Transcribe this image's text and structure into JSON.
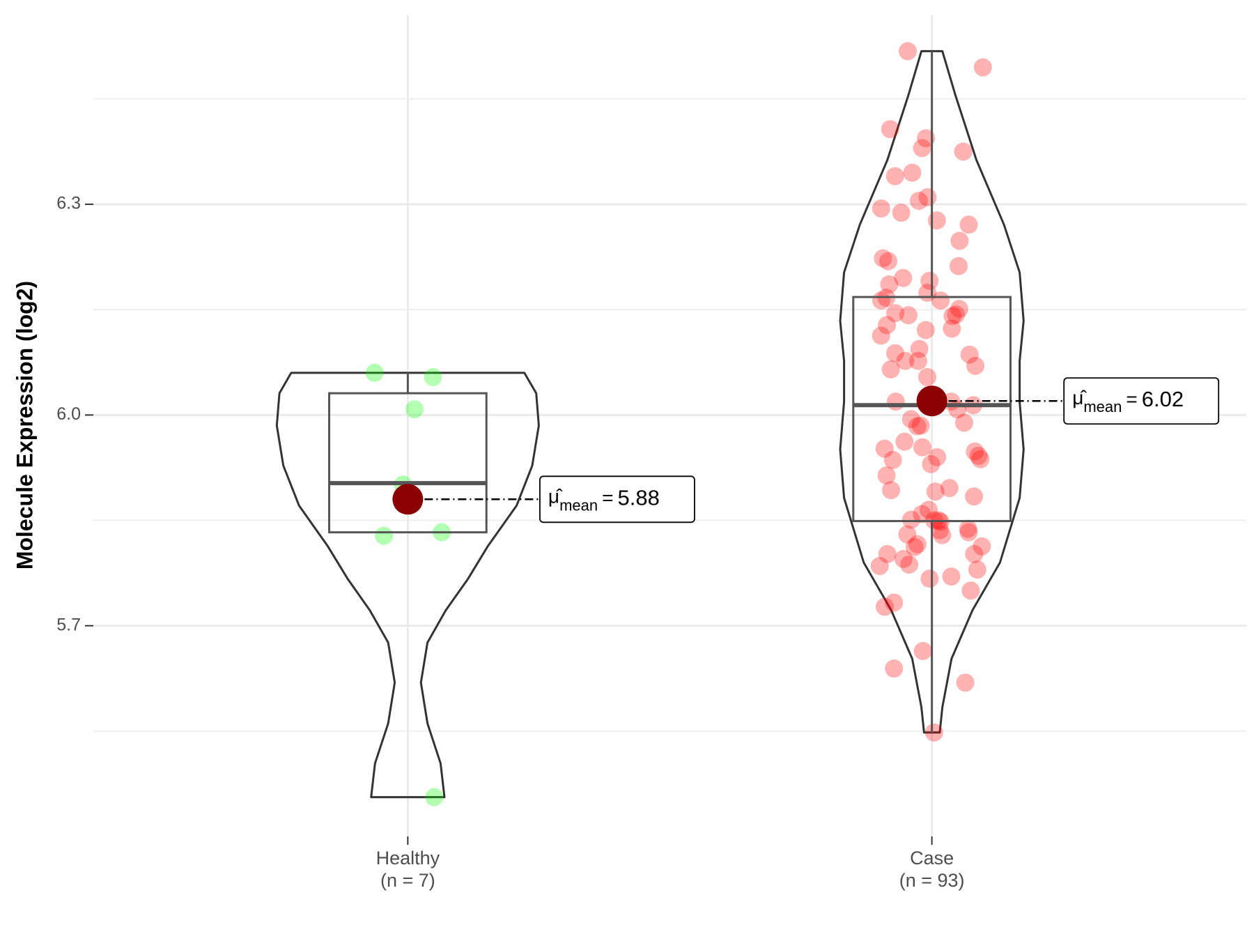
{
  "chart_data": {
    "type": "violin",
    "y_label": "Molecule Expression (log2)",
    "categories": [
      "Healthy",
      "Case"
    ],
    "category_sublabels": [
      "(n = 7)",
      "(n = 93)"
    ],
    "ylim": [
      5.4,
      6.57
    ],
    "yticks": [
      {
        "value": 5.7,
        "label": "5.7"
      },
      {
        "value": 6,
        "label": "6.0"
      },
      {
        "value": 6.3,
        "label": "6.3"
      }
    ],
    "minor_yticks": [
      5.55,
      5.85,
      6.15,
      6.45
    ],
    "grid": true,
    "mean_symbol": "μ̂",
    "mean_subscript": "mean",
    "mean_operator": "=",
    "groups": [
      {
        "color": "#00ff00",
        "mean_color": "#8b0000",
        "values": [
          6.06,
          6.054,
          6.008,
          5.901,
          5.828,
          5.833,
          5.456
        ],
        "q1": 5.833,
        "median": 5.903,
        "q3": 6.031,
        "whisker_low": 5.833,
        "whisker_high": 6.06,
        "mean": 5.88,
        "violin_y": [
          6.06,
          6.031,
          5.985,
          5.928,
          5.871,
          5.813,
          5.767,
          5.722,
          5.676,
          5.619,
          5.561,
          5.504,
          5.456
        ],
        "violin_density": [
          0.89,
          0.98,
          1,
          0.95,
          0.83,
          0.61,
          0.46,
          0.29,
          0.15,
          0.1,
          0.15,
          0.25,
          0.28
        ]
      },
      {
        "color": "#ff0000",
        "mean_color": "#8b0000",
        "values": [
          6.518,
          6.495,
          6.407,
          6.394,
          6.375,
          6.38,
          6.345,
          6.34,
          6.305,
          6.31,
          6.294,
          6.288,
          6.277,
          6.271,
          6.248,
          6.223,
          6.219,
          6.212,
          6.191,
          6.195,
          6.186,
          6.167,
          6.163,
          6.163,
          6.145,
          6.151,
          6.141,
          6.142,
          6.128,
          6.123,
          6.121,
          6.113,
          6.088,
          6.094,
          6.086,
          6.077,
          6.077,
          6.065,
          6.07,
          6.054,
          6.019,
          6.014,
          6.019,
          5.994,
          5.989,
          6.008,
          5.984,
          5.985,
          5.962,
          5.952,
          5.94,
          5.937,
          5.936,
          5.93,
          5.942,
          5.954,
          5.914,
          5.893,
          5.884,
          5.896,
          5.865,
          5.851,
          5.848,
          5.85,
          5.838,
          5.833,
          5.83,
          5.829,
          5.813,
          5.816,
          5.812,
          5.802,
          5.795,
          5.787,
          5.78,
          5.767,
          5.77,
          5.75,
          5.733,
          5.727,
          5.664,
          5.639,
          5.619,
          5.548,
          5.85,
          5.836,
          6.174,
          6.143,
          5.948,
          5.859,
          5.785,
          5.802,
          5.891
        ],
        "q1": 5.849,
        "median": 6.014,
        "q3": 6.168,
        "whisker_low": 5.548,
        "whisker_high": 6.518,
        "mean": 6.02,
        "violin_y": [
          6.518,
          6.455,
          6.363,
          6.271,
          6.203,
          6.134,
          6.077,
          6.019,
          5.951,
          5.882,
          5.79,
          5.722,
          5.653,
          5.584,
          5.548
        ],
        "violin_density": [
          0.08,
          0.18,
          0.34,
          0.55,
          0.67,
          0.7,
          0.67,
          0.67,
          0.7,
          0.67,
          0.52,
          0.31,
          0.15,
          0.08,
          0.06
        ]
      }
    ]
  }
}
